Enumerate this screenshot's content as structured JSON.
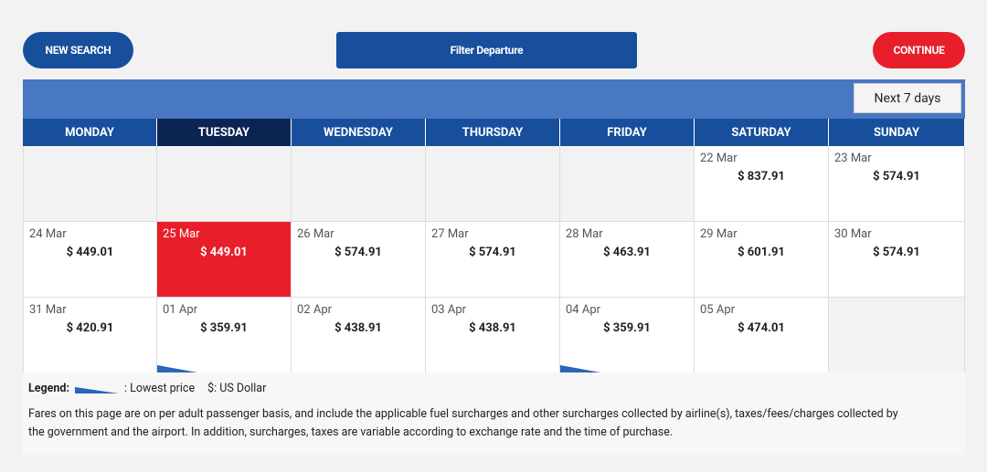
{
  "buttons": {
    "new_search": "NEW SEARCH",
    "filter": "Filter Departure",
    "continue": "CONTINUE",
    "next": "Next 7 days"
  },
  "days": [
    "MONDAY",
    "TUESDAY",
    "WEDNESDAY",
    "THURSDAY",
    "FRIDAY",
    "SATURDAY",
    "SUNDAY"
  ],
  "selected_day": 1,
  "weeks": [
    [
      null,
      null,
      null,
      null,
      null,
      {
        "date": "22 Mar",
        "price": "$ 837.91"
      },
      {
        "date": "23 Mar",
        "price": "$ 574.91"
      }
    ],
    [
      {
        "date": "24 Mar",
        "price": "$ 449.01"
      },
      {
        "date": "25 Mar",
        "price": "$ 449.01",
        "selected": true
      },
      {
        "date": "26 Mar",
        "price": "$ 574.91"
      },
      {
        "date": "27 Mar",
        "price": "$ 574.91"
      },
      {
        "date": "28 Mar",
        "price": "$ 463.91"
      },
      {
        "date": "29 Mar",
        "price": "$ 601.91"
      },
      {
        "date": "30 Mar",
        "price": "$ 574.91"
      }
    ],
    [
      {
        "date": "31 Mar",
        "price": "$ 420.91"
      },
      {
        "date": "01 Apr",
        "price": "$ 359.91",
        "lowest": true
      },
      {
        "date": "02 Apr",
        "price": "$ 438.91"
      },
      {
        "date": "03 Apr",
        "price": "$ 438.91"
      },
      {
        "date": "04 Apr",
        "price": "$ 359.91",
        "lowest": true
      },
      {
        "date": "05 Apr",
        "price": "$ 474.01"
      },
      null
    ]
  ],
  "legend": {
    "title": "Legend:",
    "lowest": ": Lowest price",
    "currency": "$: US Dollar"
  },
  "note": [
    "Fares on this page are on per adult passenger basis, and include the applicable fuel surcharges and other surcharges collected by airline(s), taxes/fees/charges collected by",
    "the government and the airport. In addition, surcharges, taxes are variable according to exchange rate and the time of purchase."
  ]
}
